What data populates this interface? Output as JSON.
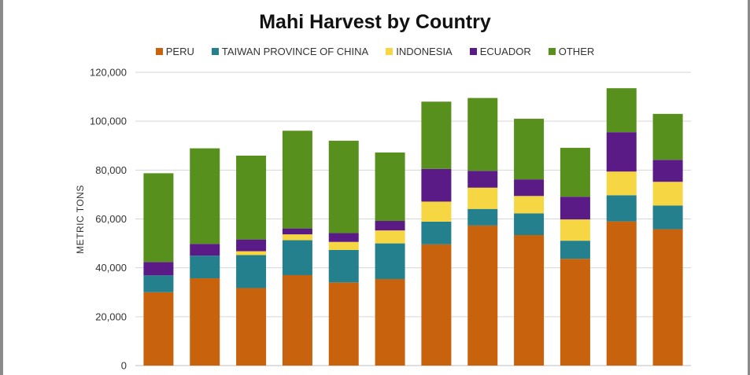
{
  "chart_data": {
    "type": "bar",
    "stacked": true,
    "title": "Mahi Harvest by Country",
    "xlabel": "",
    "ylabel": "METRIC TONS",
    "ylim": [
      0,
      120000
    ],
    "yticks": [
      "0",
      "20,000",
      "40,000",
      "60,000",
      "80,000",
      "100,000",
      "120,000"
    ],
    "ytick_values": [
      0,
      20000,
      40000,
      60000,
      80000,
      100000,
      120000
    ],
    "grid": true,
    "legend_position": "top",
    "categories": [
      "",
      "",
      "",
      "",
      "",
      "",
      "",
      "",
      "",
      "",
      "",
      ""
    ],
    "series": [
      {
        "name": "PERU",
        "color": "#c9620c",
        "values": [
          30000,
          35700,
          31700,
          37000,
          34000,
          35400,
          49600,
          57300,
          53400,
          43700,
          59000,
          55800
        ]
      },
      {
        "name": "TAIWAN PROVINCE OF CHINA",
        "color": "#25808e",
        "values": [
          6900,
          9300,
          13500,
          14300,
          13300,
          14600,
          9300,
          6800,
          8900,
          7400,
          10700,
          9700
        ]
      },
      {
        "name": "INDONESIA",
        "color": "#f6d743",
        "values": [
          0,
          0,
          1600,
          2400,
          3300,
          5300,
          8200,
          8700,
          7100,
          8700,
          9700,
          9700
        ]
      },
      {
        "name": "ECUADOR",
        "color": "#5b1b87",
        "values": [
          5500,
          4800,
          4800,
          2400,
          3600,
          3900,
          13400,
          6900,
          6800,
          9300,
          16100,
          9000
        ]
      },
      {
        "name": "OTHER",
        "color": "#57901c",
        "values": [
          36300,
          39100,
          34300,
          40000,
          37800,
          28000,
          27500,
          29800,
          24800,
          20000,
          18000,
          18800
        ]
      }
    ]
  }
}
